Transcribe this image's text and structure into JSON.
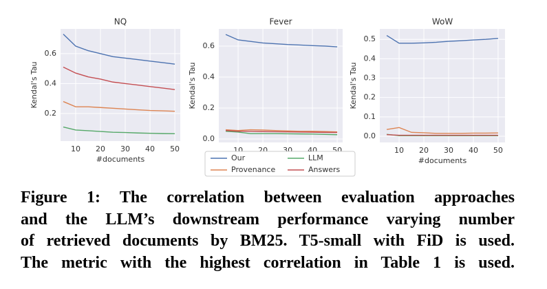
{
  "chart_data": [
    {
      "type": "line",
      "title": "NQ",
      "xlabel": "#documents",
      "ylabel": "Kendal's Tau",
      "x": [
        5,
        10,
        15,
        20,
        25,
        30,
        35,
        40,
        45,
        50
      ],
      "xlim": [
        3.9,
        52.2
      ],
      "xticks": [
        10,
        20,
        30,
        40,
        50
      ],
      "ylim": [
        0.016,
        0.765
      ],
      "yticks": [
        0.2,
        0.4,
        0.6
      ],
      "grid": true,
      "series": [
        {
          "name": "Our",
          "color": "#4c72b0",
          "values": [
            0.73,
            0.65,
            0.62,
            0.6,
            0.58,
            0.57,
            0.56,
            0.55,
            0.54,
            0.53
          ]
        },
        {
          "name": "Provenance",
          "color": "#dd8452",
          "values": [
            0.28,
            0.245,
            0.245,
            0.24,
            0.235,
            0.23,
            0.225,
            0.22,
            0.218,
            0.215
          ]
        },
        {
          "name": "LLM",
          "color": "#55a868",
          "values": [
            0.11,
            0.09,
            0.085,
            0.08,
            0.075,
            0.073,
            0.07,
            0.068,
            0.066,
            0.065
          ]
        },
        {
          "name": "Answers",
          "color": "#c44e52",
          "values": [
            0.51,
            0.47,
            0.445,
            0.43,
            0.41,
            0.4,
            0.39,
            0.38,
            0.37,
            0.36
          ]
        }
      ]
    },
    {
      "type": "line",
      "title": "Fever",
      "ylabel": "Kendal's Tau",
      "x": [
        5,
        10,
        15,
        20,
        25,
        30,
        35,
        40,
        45,
        50
      ],
      "xlim": [
        2.2,
        52.2
      ],
      "xticks": [
        10,
        20,
        30,
        40,
        50
      ],
      "ylim": [
        -0.022,
        0.711
      ],
      "yticks": [
        {
          "value": 0,
          "label": "0.0"
        },
        0.2,
        0.4,
        0.6
      ],
      "grid": true,
      "legend": "below",
      "series": [
        {
          "name": "Our",
          "color": "#4c72b0",
          "values": [
            0.675,
            0.64,
            0.63,
            0.62,
            0.615,
            0.61,
            0.607,
            0.603,
            0.6,
            0.595
          ]
        },
        {
          "name": "Provenance",
          "color": "#dd8452",
          "values": [
            0.06,
            0.055,
            0.06,
            0.058,
            0.055,
            0.052,
            0.05,
            0.05,
            0.048,
            0.046
          ]
        },
        {
          "name": "LLM",
          "color": "#55a868",
          "values": [
            0.05,
            0.045,
            0.035,
            0.035,
            0.035,
            0.034,
            0.033,
            0.032,
            0.03,
            0.028
          ]
        },
        {
          "name": "Answers",
          "color": "#c44e52",
          "values": [
            0.055,
            0.05,
            0.05,
            0.048,
            0.047,
            0.046,
            0.045,
            0.044,
            0.043,
            0.042
          ]
        }
      ]
    },
    {
      "type": "line",
      "title": "WoW",
      "xlabel": "#documents",
      "ylabel": "Kendal's Tau",
      "x": [
        5,
        10,
        15,
        20,
        25,
        30,
        35,
        40,
        45,
        50
      ],
      "xlim": [
        2.2,
        52.8
      ],
      "xticks": [
        10,
        20,
        30,
        40,
        50
      ],
      "ylim": [
        -0.032,
        0.554
      ],
      "yticks": [
        {
          "value": 0,
          "label": "0.0"
        },
        0.1,
        0.2,
        0.3,
        0.4,
        0.5
      ],
      "grid": true,
      "series": [
        {
          "name": "Our",
          "color": "#4c72b0",
          "values": [
            0.52,
            0.48,
            0.48,
            0.482,
            0.485,
            0.49,
            0.493,
            0.497,
            0.5,
            0.505
          ]
        },
        {
          "name": "Provenance",
          "color": "#dd8452",
          "values": [
            0.035,
            0.045,
            0.02,
            0.018,
            0.015,
            0.015,
            0.015,
            0.016,
            0.016,
            0.017
          ]
        },
        {
          "name": "LLM",
          "color": "#55a868",
          "values": [
            0.01,
            0.003,
            0.003,
            0.003,
            0.003,
            0.003,
            0.003,
            0.003,
            0.003,
            0.003
          ]
        },
        {
          "name": "Answers",
          "color": "#c44e52",
          "values": [
            0.008,
            0.005,
            0.005,
            0.005,
            0.005,
            0.005,
            0.005,
            0.005,
            0.005,
            0.005
          ]
        }
      ]
    }
  ],
  "caption_lines": [
    "Figure 1: The correlation between evaluation approaches",
    "and the LLM’s downstream performance varying number",
    "of retrieved documents by BM25. T5-small with FiD is used.",
    "The metric with the highest correlation in Table 1 is used."
  ]
}
